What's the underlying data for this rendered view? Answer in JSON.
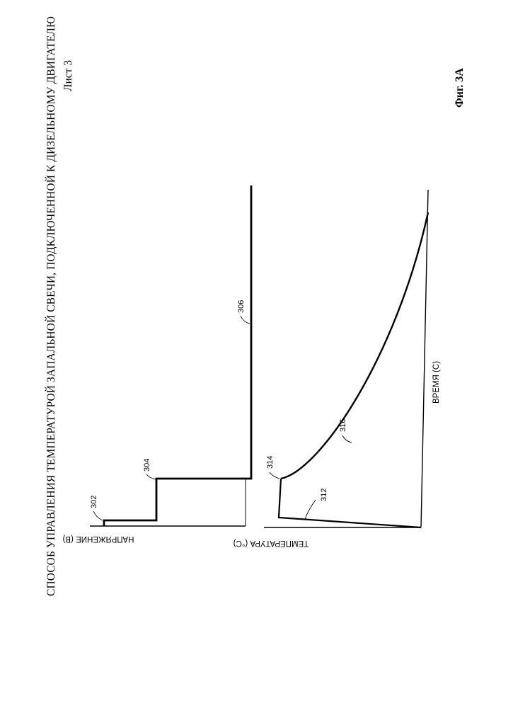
{
  "header": {
    "title": "СПОСОБ УПРАВЛЕНИЯ ТЕМПЕРАТУРОЙ ЗАПАЛЬНОЙ СВЕЧИ, ПОДКЛЮЧЕННОЙ К ДИЗЕЛЬНОМУ ДВИГАТЕЛЮ",
    "sheet": "Лист 3"
  },
  "figure": {
    "caption": "Фиг. 3А",
    "voltage_axis_label": "НАПРЯЖЕНИЕ (В)",
    "temperature_axis_label": "ТЕМПЕРАТУРА (°С)",
    "time_axis_label": "ВРЕМЯ (С)",
    "refs": {
      "r302": "302",
      "r304": "304",
      "r306": "306",
      "r312": "312",
      "r314": "314",
      "r316": "316"
    }
  },
  "colors": {
    "ink": "#000000",
    "paper": "#ffffff"
  }
}
